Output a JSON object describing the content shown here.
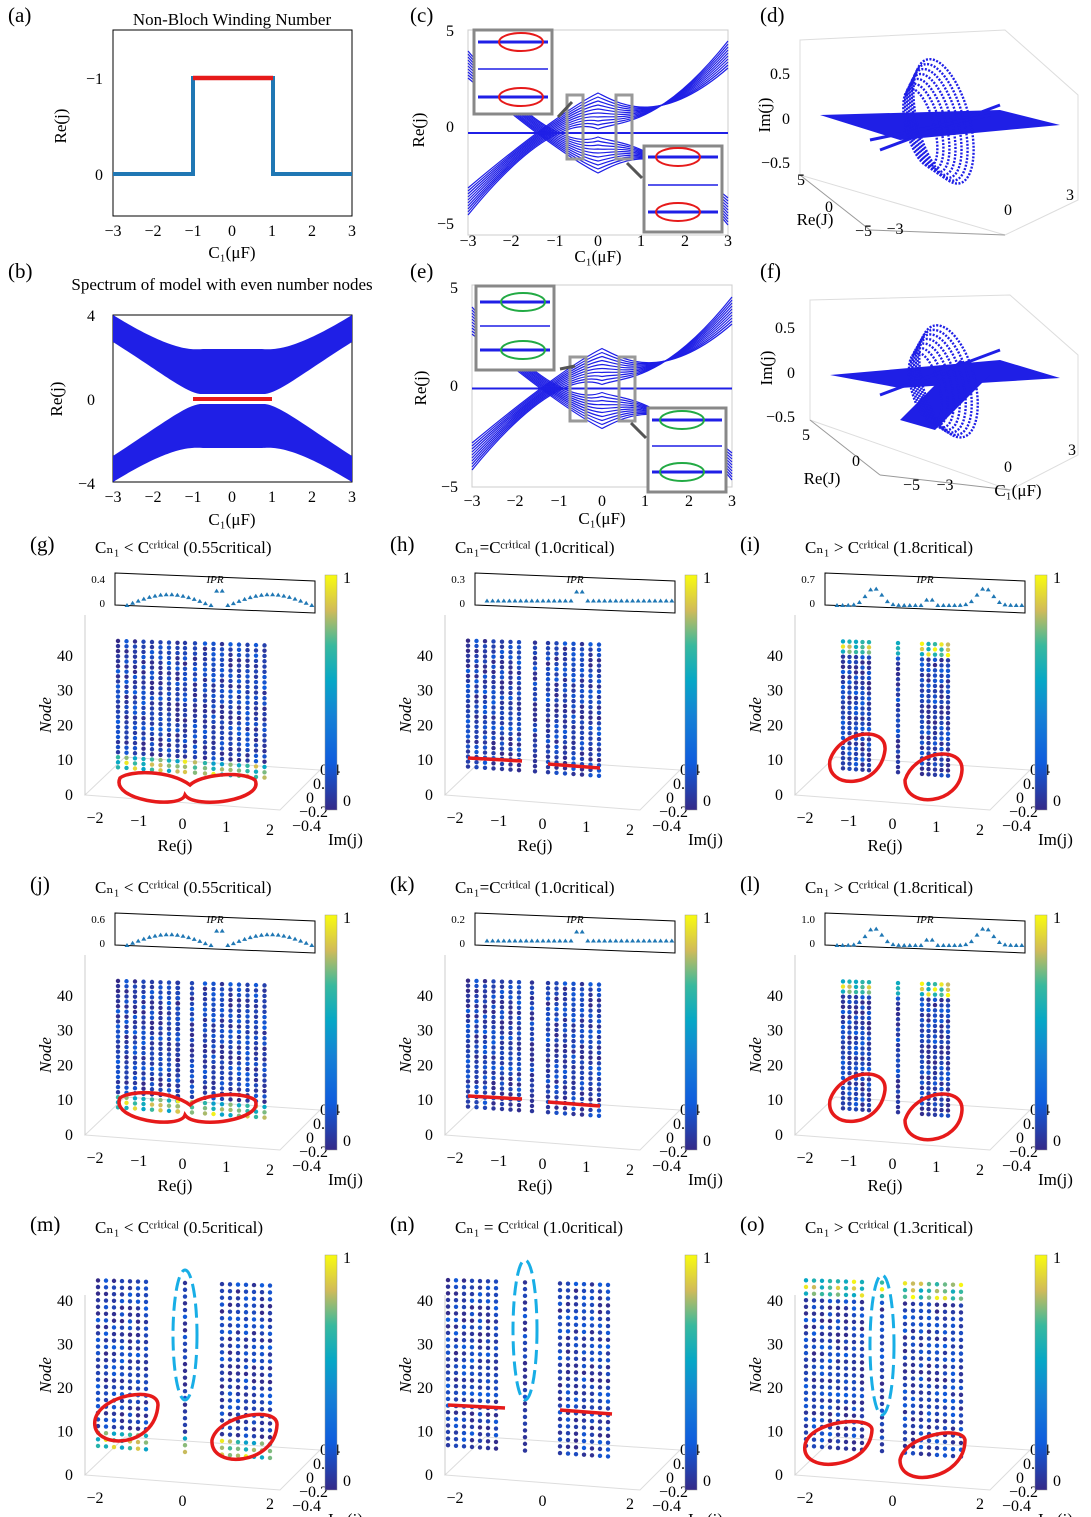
{
  "panel_labels": {
    "a": "(a)",
    "b": "(b)",
    "c": "(c)",
    "d": "(d)",
    "e": "(e)",
    "f": "(f)",
    "g": "(g)",
    "h": "(h)",
    "i": "(i)",
    "j": "(j)",
    "k": "(k)",
    "l": "(l)",
    "m": "(m)",
    "n": "(n)",
    "o": "(o)"
  },
  "titles": {
    "a": "Non-Bloch Winding Number",
    "b": "Spectrum of  model with even number nodes",
    "g": "Cₙ₁ < Cᶜʳⁱᵗⁱᶜᵃˡ (0.55critical)",
    "h": "Cₙ₁=Cᶜʳⁱᵗⁱᶜᵃˡ (1.0critical)",
    "i": "Cₙ₁ > Cᶜʳⁱᵗⁱᶜᵃˡ (1.8critical)",
    "j": "Cₙ₁ < Cᶜʳⁱᵗⁱᶜᵃˡ (0.55critical)",
    "k": "Cₙ₁=Cᶜʳⁱᵗⁱᶜᵃˡ (1.0critical)",
    "l": "Cₙ₁ > Cᶜʳⁱᵗⁱᶜᵃˡ (1.8critical)",
    "m": "Cₙ₁ < Cᶜʳⁱᵗⁱᶜᵃˡ (0.5critical)",
    "n": "Cₙ₁ = Cᶜʳⁱᵗⁱᶜᵃˡ (1.0critical)",
    "o": "Cₙ₁ > Cᶜʳⁱᵗⁱᶜᵃˡ (1.3critical)"
  },
  "labels": {
    "rej": "Re(j)",
    "imj": "Im(j)",
    "reJ": "Re(J)",
    "c1": "C₁(μF)",
    "node": "Node",
    "ipr": "IPR"
  },
  "ticks": {
    "x3": [
      "−3",
      "−2",
      "−1",
      "0",
      "1",
      "2",
      "3"
    ],
    "ya": [
      "−1",
      "0"
    ],
    "yc": [
      "5",
      "0",
      "−5"
    ],
    "yb": [
      "4",
      "0",
      "−4"
    ],
    "d_im": [
      "0.5",
      "0",
      "−0.5"
    ],
    "d_re": [
      "5",
      "0",
      "−5"
    ],
    "d_c": [
      "3",
      "0",
      "−3"
    ],
    "node": [
      "0",
      "10",
      "20",
      "30",
      "40"
    ],
    "re3": [
      "−2",
      "−1",
      "0",
      "1",
      "2"
    ],
    "re2": [
      "−2",
      "0",
      "2"
    ],
    "im": [
      "0.4",
      "0.2",
      "0",
      "−0.2",
      "−0.4"
    ],
    "cb": [
      "1",
      "0.4",
      "0"
    ]
  },
  "ipr_max": {
    "g": "0.4",
    "h": "0.3",
    "i": "0.7",
    "j": "0.6",
    "k": "0.2",
    "l": "1.0"
  },
  "ipr_min": "0",
  "colors": {
    "blue": "#1f1fe6",
    "red": "#e61a1a",
    "steel": "#1f77b4",
    "green": "#22aa44",
    "dashed": "#18aee6"
  },
  "chart_data": [
    {
      "panel": "a",
      "type": "line",
      "title": "Non-Bloch Winding Number",
      "xlabel": "C₁(μF)",
      "ylabel": "Re(j)",
      "xlim": [
        -3,
        3
      ],
      "ylim": [
        0.3,
        -1.45
      ],
      "series": [
        {
          "x": [
            -3,
            -1,
            -1,
            1,
            1,
            3
          ],
          "y": [
            0,
            0,
            -1,
            -1,
            0,
            0
          ]
        }
      ],
      "highlight": {
        "x": [
          -1,
          1
        ],
        "y": [
          -1,
          -1
        ]
      }
    },
    {
      "panel": "b",
      "type": "area",
      "title": "Spectrum of  model with even number nodes",
      "xlabel": "C₁(μF)",
      "ylabel": "Re(j)",
      "xlim": [
        -3,
        3
      ],
      "ylim": [
        -4,
        4
      ],
      "highlight": {
        "x": [
          -1,
          1
        ],
        "y": [
          0,
          0
        ]
      }
    },
    {
      "panel": "c",
      "type": "line",
      "xlabel": "C₁(μF)",
      "ylabel": "Re(j)",
      "xlim": [
        -3,
        3
      ],
      "ylim": [
        -5,
        5
      ]
    },
    {
      "panel": "e",
      "type": "line",
      "xlabel": "C₁(μF)",
      "ylabel": "Re(j)",
      "xlim": [
        -3,
        3
      ],
      "ylim": [
        -5,
        5
      ]
    },
    {
      "panel": "d",
      "type": "scatter",
      "xlabel": "Re(J)",
      "ylabel": "Im(j)"
    },
    {
      "panel": "f",
      "type": "scatter",
      "xlabel": "Re(J)",
      "ylabel": "Im(j)",
      "zlabel": "C₁(μF)"
    }
  ]
}
